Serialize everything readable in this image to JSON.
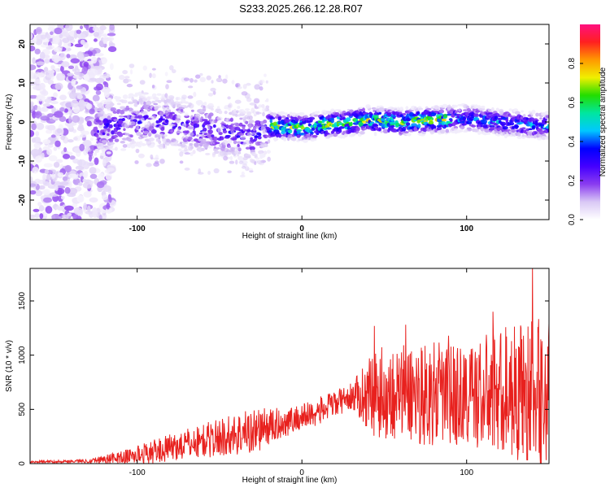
{
  "figure_title": "S233.2025.266.12.28.R07",
  "chart_data": [
    {
      "type": "heatmap",
      "title": "S233.2025.266.12.28.R07",
      "xlabel": "Height of straight line (km)",
      "ylabel": "Frequency (Hz)",
      "xlim": [
        -165,
        150
      ],
      "ylim": [
        -25,
        25
      ],
      "xticks": [
        -100,
        0,
        100
      ],
      "yticks": [
        -20,
        -10,
        0,
        10,
        20
      ],
      "colorbar": {
        "label": "Normalized spectral amplitude",
        "range": [
          0,
          1
        ],
        "ticks": [
          0.0,
          0.2,
          0.4,
          0.6,
          0.8
        ],
        "tick_labels": [
          "0.0",
          "0.2",
          "0.4",
          "0.6",
          "0.8"
        ],
        "colormap": [
          "#ffffff",
          "#d9c8f5",
          "#8a3cf0",
          "#4400ff",
          "#0000ff",
          "#00c8ff",
          "#00e6a0",
          "#22dd00",
          "#f0f000",
          "#ff9900",
          "#ff2020",
          "#ff1080"
        ]
      },
      "ridge_center_hz": [
        {
          "x": -120,
          "y": -1.5
        },
        {
          "x": -100,
          "y": 0.5
        },
        {
          "x": -80,
          "y": 0.0
        },
        {
          "x": -60,
          "y": -2.0
        },
        {
          "x": -40,
          "y": -3.0
        },
        {
          "x": -30,
          "y": -4.0
        },
        {
          "x": -20,
          "y": -1.0
        },
        {
          "x": 0,
          "y": -1.5
        },
        {
          "x": 20,
          "y": -0.5
        },
        {
          "x": 40,
          "y": 0.5
        },
        {
          "x": 60,
          "y": 0.0
        },
        {
          "x": 80,
          "y": 0.5
        },
        {
          "x": 100,
          "y": 1.0
        },
        {
          "x": 120,
          "y": 0.0
        },
        {
          "x": 145,
          "y": -1.0
        }
      ],
      "noise_region_km": [
        -165,
        -120
      ]
    },
    {
      "type": "line",
      "xlabel": "Height of straight line (km)",
      "ylabel": "SNR (10 * v/v)",
      "xlim": [
        -165,
        150
      ],
      "ylim": [
        0,
        1800
      ],
      "xticks": [
        -100,
        0,
        100
      ],
      "yticks": [
        0,
        500,
        1000,
        1500
      ],
      "series": [
        {
          "name": "SNR",
          "color": "#e8211e",
          "envelope": [
            {
              "x": -165,
              "mean": 15,
              "spread": 8
            },
            {
              "x": -130,
              "mean": 25,
              "spread": 20
            },
            {
              "x": -110,
              "mean": 55,
              "spread": 60
            },
            {
              "x": -90,
              "mean": 110,
              "spread": 110
            },
            {
              "x": -70,
              "mean": 180,
              "spread": 140
            },
            {
              "x": -50,
              "mean": 240,
              "spread": 180
            },
            {
              "x": -30,
              "mean": 300,
              "spread": 220
            },
            {
              "x": -10,
              "mean": 380,
              "spread": 130
            },
            {
              "x": 10,
              "mean": 480,
              "spread": 130
            },
            {
              "x": 30,
              "mean": 620,
              "spread": 120
            },
            {
              "x": 45,
              "mean": 650,
              "spread": 420
            },
            {
              "x": 70,
              "mean": 650,
              "spread": 480
            },
            {
              "x": 100,
              "mean": 620,
              "spread": 480
            },
            {
              "x": 125,
              "mean": 680,
              "spread": 620
            },
            {
              "x": 145,
              "mean": 650,
              "spread": 700
            }
          ],
          "notable_peaks": [
            {
              "x": 44,
              "y": 1270
            },
            {
              "x": 63,
              "y": 1280
            },
            {
              "x": 89,
              "y": 1180
            },
            {
              "x": 116,
              "y": 1400
            },
            {
              "x": 140,
              "y": 1800
            }
          ]
        }
      ]
    }
  ]
}
